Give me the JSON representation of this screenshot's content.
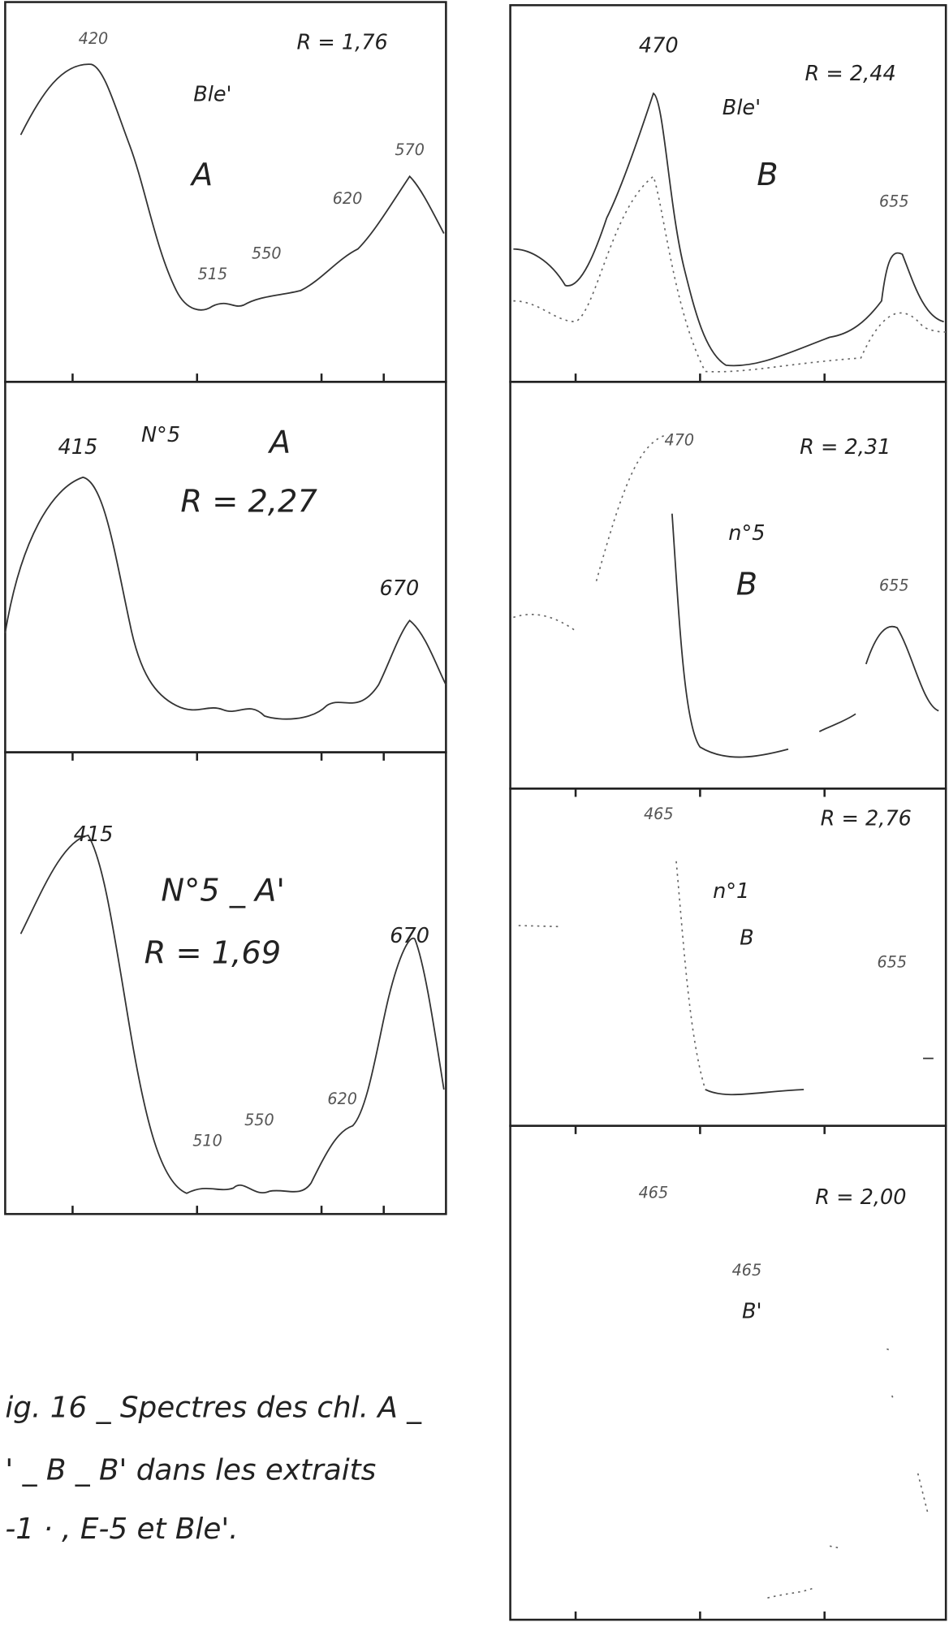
{
  "left_panels": [
    {
      "notes": [
        "420",
        "R = 1,76",
        "Ble'",
        "A",
        "570",
        "620",
        "515",
        "550"
      ]
    },
    {
      "notes": [
        "415",
        "N°5",
        "A",
        "R = 2,27",
        "670"
      ]
    },
    {
      "notes": [
        "415",
        "N°5 _ A'",
        "R = 1,69",
        "670",
        "510",
        "550",
        "620"
      ]
    }
  ],
  "right_panels": [
    {
      "notes": [
        "470",
        "R = 2,44",
        "Ble'",
        "B",
        "655"
      ]
    },
    {
      "notes": [
        "470",
        "R = 2,31",
        "n°5",
        "B",
        "655"
      ]
    },
    {
      "notes": [
        "465",
        "R = 2,76",
        "n°1",
        "B",
        "655"
      ]
    },
    {
      "notes": [
        "465",
        "R = 2,00",
        "465",
        "B'"
      ]
    }
  ],
  "caption": {
    "lines": [
      "ig. 16 _ Spectres des chl. A _",
      "' _ B _ B' dans les extraits",
      "-1 · , E-5 et Ble'."
    ]
  }
}
